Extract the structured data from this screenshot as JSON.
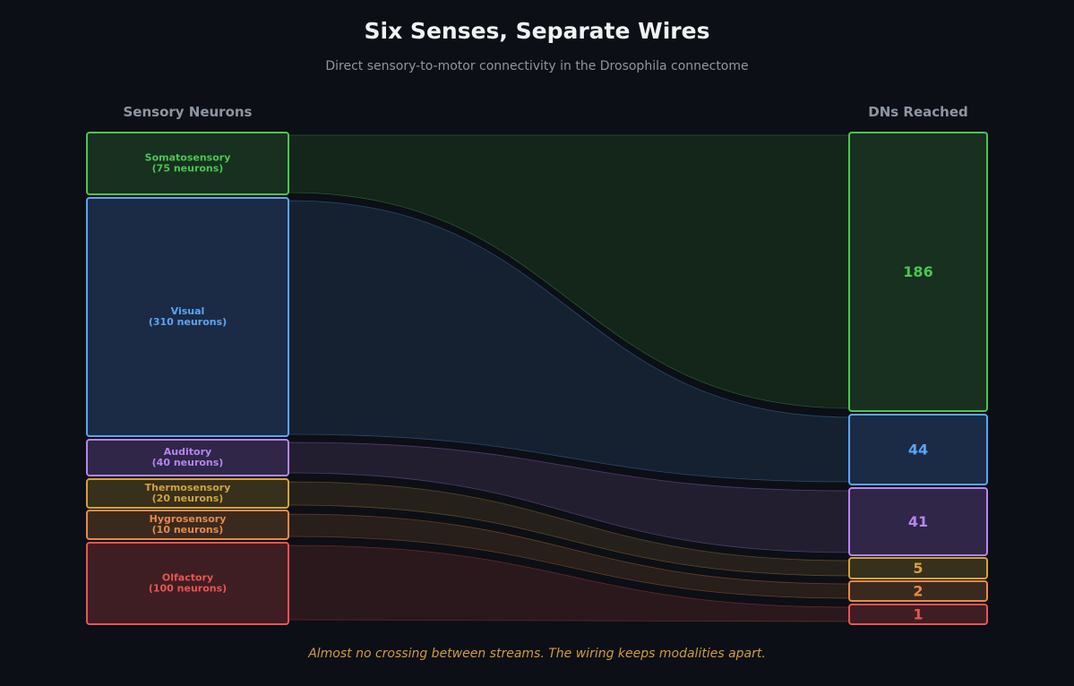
{
  "header": {
    "title": "Six Senses, Separate Wires",
    "subtitle": "Direct sensory-to-motor connectivity in the Drosophila connectome"
  },
  "columns": {
    "left": "Sensory Neurons",
    "right": "DNs Reached"
  },
  "caption": "Almost no crossing between streams. The wiring keeps modalities apart.",
  "modalities": [
    {
      "id": "somatosensory",
      "name": "Somatosensory",
      "neurons_label": "(75 neurons)",
      "dns": "186",
      "color": "#4cc552",
      "fill": "#17301f",
      "flow": "#14251a"
    },
    {
      "id": "visual",
      "name": "Visual",
      "neurons_label": "(310 neurons)",
      "dns": "44",
      "color": "#5aa5f5",
      "fill": "#1b2b45",
      "flow": "#152131"
    },
    {
      "id": "auditory",
      "name": "Auditory",
      "neurons_label": "(40 neurons)",
      "dns": "41",
      "color": "#b784f0",
      "fill": "#2f2648",
      "flow": "#221e30"
    },
    {
      "id": "thermosensory",
      "name": "Thermosensory",
      "neurons_label": "(20 neurons)",
      "dns": "5",
      "color": "#d4a23a",
      "fill": "#36301c",
      "flow": "#25211a"
    },
    {
      "id": "hygrosensory",
      "name": "Hygrosensory",
      "neurons_label": "(10 neurons)",
      "dns": "2",
      "color": "#e8894a",
      "fill": "#3a2a1e",
      "flow": "#281e1a"
    },
    {
      "id": "olfactory",
      "name": "Olfactory",
      "neurons_label": "(100 neurons)",
      "dns": "1",
      "color": "#e85555",
      "fill": "#3e1e22",
      "flow": "#2a181d"
    }
  ]
}
